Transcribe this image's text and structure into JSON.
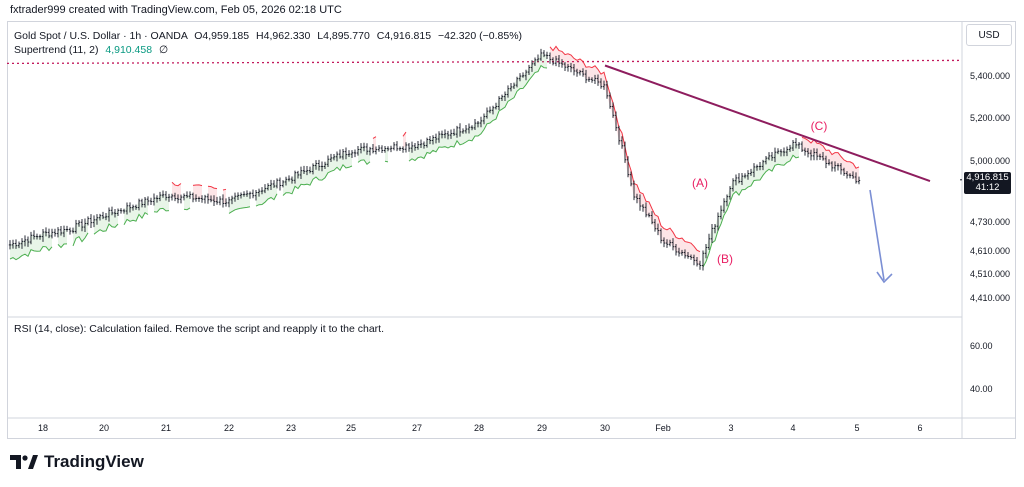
{
  "header": {
    "author_line": "fxtrader999 created with TradingView.com, Feb 05, 2026 02:18 UTC"
  },
  "legend": {
    "symbol": "Gold Spot / U.S. Dollar · 1h · OANDA",
    "open": "O4,959.185",
    "high": "H4,962.330",
    "low": "L4,895.770",
    "close": "C4,916.815",
    "change": "−42.320 (−0.85%)",
    "indicator": "Supertrend (11, 2)",
    "indicator_value": "4,910.458",
    "indicator_icon": "∅"
  },
  "rsi": {
    "message": "RSI (14, close): Calculation failed. Remove the script and reapply it to the chart."
  },
  "currency": "USD",
  "price_tag": {
    "price": "4,916.815",
    "countdown": "41:12"
  },
  "branding": {
    "name": "TradingView"
  },
  "colors": {
    "up": "#089981",
    "down": "#f23645",
    "trendline": "#8e1d5e",
    "dotted": "#c2185b",
    "arrow": "#7b8fd4",
    "wave_label": "#e91e63"
  },
  "chart_data": {
    "type": "candlestick",
    "y_axis": {
      "ticks": [
        "5,400.000",
        "5,200.000",
        "5,000.000",
        "4,730.000",
        "4,610.000",
        "4,510.000",
        "4,410.000"
      ]
    },
    "rsi_axis": {
      "ticks": [
        "60.00",
        "40.00"
      ]
    },
    "x_axis": {
      "ticks": [
        "18",
        "20",
        "21",
        "22",
        "23",
        "25",
        "27",
        "28",
        "29",
        "30",
        "Feb",
        "3",
        "4",
        "5",
        "6"
      ]
    },
    "annotations": [
      {
        "label": "(A)",
        "approx_date": "Feb 2",
        "price": 4850
      },
      {
        "label": "(B)",
        "approx_date": "Feb 2",
        "price": 4545
      },
      {
        "label": "(C)",
        "approx_date": "Feb 4",
        "price": 5110
      }
    ],
    "trendline": {
      "from": {
        "date": "Jan 30",
        "price": 5450
      },
      "to": {
        "date": "Feb 6",
        "price": 4920
      }
    },
    "horizontal_level": {
      "price": 5460,
      "style": "dotted"
    },
    "close_price": 4916.815,
    "waypoints": [
      [
        "Jan 16",
        4595
      ],
      [
        "Jan 18",
        4680
      ],
      [
        "Jan 19",
        4705
      ],
      [
        "Jan 20",
        4760
      ],
      [
        "Jan 21",
        4850
      ],
      [
        "Jan 22",
        4820
      ],
      [
        "Jan 23",
        4925
      ],
      [
        "Jan 25",
        5050
      ],
      [
        "Jan 27",
        5075
      ],
      [
        "Jan 28",
        5180
      ],
      [
        "Jan 29",
        5500
      ],
      [
        "Jan 30",
        5350
      ],
      [
        "Jan 31",
        4850
      ],
      [
        "Feb 1",
        4650
      ],
      [
        "Feb 2",
        4560
      ],
      [
        "Feb 3",
        4900
      ],
      [
        "Feb 4",
        5080
      ],
      [
        "Feb 5",
        4917
      ]
    ]
  }
}
